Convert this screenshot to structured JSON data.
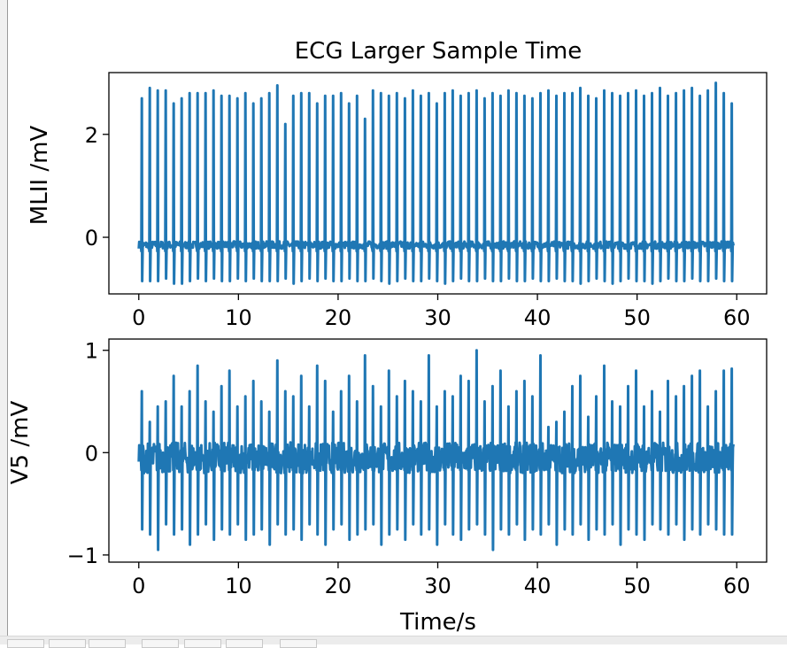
{
  "chart_data": [
    {
      "type": "line",
      "title": "ECG Larger Sample Time",
      "xlabel": "",
      "ylabel": "MLII /mV",
      "xlim": [
        -3,
        63
      ],
      "ylim": [
        -1.1,
        3.2
      ],
      "xticks": [
        0,
        10,
        20,
        30,
        40,
        50,
        60
      ],
      "xtick_labels": [
        "0",
        "10",
        "20",
        "30",
        "40",
        "50",
        "60"
      ],
      "yticks": [
        0,
        2
      ],
      "ytick_labels": [
        "0",
        "2"
      ],
      "color": "#1f77b4",
      "baseline": -0.15,
      "beat_times": [
        0.3,
        1.1,
        1.9,
        2.7,
        3.5,
        4.3,
        5.1,
        5.9,
        6.7,
        7.5,
        8.3,
        9.1,
        9.9,
        10.7,
        11.5,
        12.3,
        13.1,
        13.9,
        14.7,
        15.5,
        16.3,
        17.1,
        17.9,
        18.7,
        19.5,
        20.3,
        21.1,
        21.9,
        22.7,
        23.5,
        24.3,
        25.1,
        25.9,
        26.7,
        27.5,
        28.3,
        29.1,
        29.9,
        30.7,
        31.5,
        32.3,
        33.1,
        33.9,
        34.7,
        35.5,
        36.3,
        37.1,
        37.9,
        38.7,
        39.5,
        40.3,
        41.1,
        41.9,
        42.7,
        43.5,
        44.3,
        45.1,
        45.9,
        46.7,
        47.5,
        48.3,
        49.1,
        49.9,
        50.7,
        51.5,
        52.3,
        53.1,
        53.9,
        54.7,
        55.5,
        56.3,
        57.1,
        57.9,
        58.7,
        59.5
      ],
      "r_peaks": [
        2.7,
        2.9,
        2.85,
        2.85,
        2.6,
        2.7,
        2.8,
        2.8,
        2.8,
        2.85,
        2.75,
        2.75,
        2.7,
        2.8,
        2.6,
        2.7,
        2.8,
        2.95,
        2.2,
        2.75,
        2.8,
        2.8,
        2.6,
        2.75,
        2.75,
        2.8,
        2.6,
        2.75,
        2.3,
        2.85,
        2.8,
        2.75,
        2.8,
        2.7,
        2.85,
        2.75,
        2.8,
        2.6,
        2.8,
        2.85,
        2.75,
        2.8,
        2.85,
        2.7,
        2.8,
        2.75,
        2.85,
        2.8,
        2.75,
        2.7,
        2.8,
        2.85,
        2.75,
        2.8,
        2.8,
        2.9,
        2.75,
        2.7,
        2.85,
        2.8,
        2.75,
        2.8,
        2.85,
        2.75,
        2.8,
        2.9,
        2.75,
        2.8,
        2.85,
        2.9,
        2.75,
        2.85,
        3.0,
        2.8,
        2.6
      ],
      "s_troughs": [
        -0.85,
        -0.85,
        -0.85,
        -0.8,
        -0.9,
        -0.9,
        -0.85,
        -0.8,
        -0.85,
        -0.8,
        -0.85,
        -0.85,
        -0.8,
        -0.85,
        -0.8,
        -0.85,
        -0.85,
        -0.85,
        -0.8,
        -0.9,
        -0.85,
        -0.8,
        -0.85,
        -0.8,
        -0.85,
        -0.85,
        -0.8,
        -0.85,
        -0.85,
        -0.8,
        -0.85,
        -0.9,
        -0.85,
        -0.8,
        -0.85,
        -0.85,
        -0.8,
        -0.85,
        -0.9,
        -0.85,
        -0.8,
        -0.85,
        -0.85,
        -0.8,
        -0.85,
        -0.85,
        -0.8,
        -0.85,
        -0.85,
        -0.8,
        -0.85,
        -0.85,
        -0.8,
        -0.85,
        -0.85,
        -0.9,
        -0.85,
        -0.8,
        -0.85,
        -0.9,
        -0.85,
        -0.8,
        -0.85,
        -0.85,
        -0.9,
        -0.85,
        -0.8,
        -0.85,
        -0.85,
        -0.8,
        -0.85,
        -0.85,
        -0.8,
        -0.85,
        -0.85
      ]
    },
    {
      "type": "line",
      "title": "",
      "xlabel": "Time/s",
      "ylabel": "V5 /mV",
      "xlim": [
        -3,
        63
      ],
      "ylim": [
        -1.07,
        1.11
      ],
      "xticks": [
        0,
        10,
        20,
        30,
        40,
        50,
        60
      ],
      "xtick_labels": [
        "0",
        "10",
        "20",
        "30",
        "40",
        "50",
        "60"
      ],
      "yticks": [
        -1,
        0,
        1
      ],
      "ytick_labels": [
        "−1",
        "0",
        "1"
      ],
      "color": "#1f77b4",
      "baseline": -0.05,
      "beat_times": [
        0.3,
        1.1,
        1.9,
        2.7,
        3.5,
        4.3,
        5.1,
        5.9,
        6.7,
        7.5,
        8.3,
        9.1,
        9.9,
        10.7,
        11.5,
        12.3,
        13.1,
        13.9,
        14.7,
        15.5,
        16.3,
        17.1,
        17.9,
        18.7,
        19.5,
        20.3,
        21.1,
        21.9,
        22.7,
        23.5,
        24.3,
        25.1,
        25.9,
        26.7,
        27.5,
        28.3,
        29.1,
        29.9,
        30.7,
        31.5,
        32.3,
        33.1,
        33.9,
        34.7,
        35.5,
        36.3,
        37.1,
        37.9,
        38.7,
        39.5,
        40.3,
        41.1,
        41.9,
        42.7,
        43.5,
        44.3,
        45.1,
        45.9,
        46.7,
        47.5,
        48.3,
        49.1,
        49.9,
        50.7,
        51.5,
        52.3,
        53.1,
        53.9,
        54.7,
        55.5,
        56.3,
        57.1,
        57.9,
        58.7,
        59.5
      ],
      "r_peaks": [
        0.6,
        0.3,
        0.45,
        0.5,
        0.75,
        0.45,
        0.6,
        0.85,
        0.5,
        0.4,
        0.65,
        0.8,
        0.45,
        0.55,
        0.7,
        0.5,
        0.4,
        0.9,
        0.6,
        0.55,
        0.75,
        0.45,
        0.85,
        0.7,
        0.4,
        0.6,
        0.75,
        0.5,
        0.95,
        0.65,
        0.45,
        0.8,
        0.55,
        0.7,
        0.6,
        0.5,
        0.95,
        0.45,
        0.6,
        0.55,
        0.75,
        0.7,
        1.0,
        0.5,
        0.65,
        0.8,
        0.45,
        0.6,
        0.7,
        0.55,
        0.95,
        0.25,
        0.3,
        0.4,
        0.65,
        0.75,
        0.35,
        0.55,
        0.85,
        0.5,
        0.45,
        0.65,
        0.8,
        0.45,
        0.6,
        0.4,
        0.7,
        0.55,
        0.65,
        0.75,
        0.8,
        0.45,
        0.6,
        0.8,
        0.82
      ],
      "s_troughs": [
        -0.75,
        -0.8,
        -0.95,
        -0.7,
        -0.8,
        -0.75,
        -0.9,
        -0.8,
        -0.7,
        -0.85,
        -0.75,
        -0.8,
        -0.7,
        -0.85,
        -0.8,
        -0.75,
        -0.9,
        -0.7,
        -0.8,
        -0.75,
        -0.85,
        -0.7,
        -0.8,
        -0.9,
        -0.75,
        -0.7,
        -0.85,
        -0.8,
        -0.75,
        -0.7,
        -0.9,
        -0.8,
        -0.75,
        -0.85,
        -0.7,
        -0.8,
        -0.75,
        -0.9,
        -0.7,
        -0.8,
        -0.85,
        -0.75,
        -0.7,
        -0.8,
        -0.95,
        -0.75,
        -0.8,
        -0.7,
        -0.85,
        -0.75,
        -0.8,
        -0.7,
        -0.9,
        -0.75,
        -0.8,
        -0.7,
        -0.85,
        -0.75,
        -0.8,
        -0.7,
        -0.9,
        -0.75,
        -0.8,
        -0.85,
        -0.7,
        -0.75,
        -0.8,
        -0.7,
        -0.85,
        -0.75,
        -0.8,
        -0.7,
        -0.75,
        -0.8,
        -0.8
      ]
    }
  ]
}
